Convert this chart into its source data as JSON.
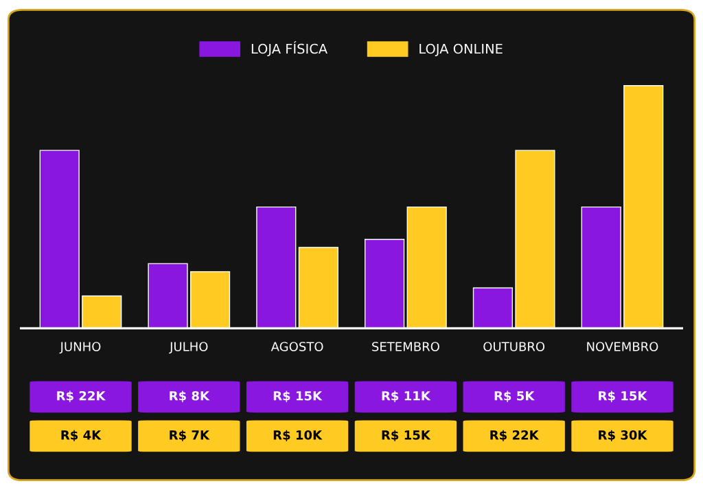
{
  "chart_data": {
    "type": "bar",
    "categories": [
      "JUNHO",
      "JULHO",
      "AGOSTO",
      "SETEMBRO",
      "OUTUBRO",
      "NOVEMBRO"
    ],
    "series": [
      {
        "name": "LOJA FÍSICA",
        "color": "#8a17e0",
        "values": [
          22000,
          8000,
          15000,
          11000,
          5000,
          15000
        ],
        "value_labels": [
          "R$ 22K",
          "R$ 8K",
          "R$ 15K",
          "R$ 11K",
          "R$ 5K",
          "R$ 15K"
        ]
      },
      {
        "name": "LOJA ONLINE",
        "color": "#ffcb22",
        "values": [
          4000,
          7000,
          10000,
          15000,
          22000,
          30000
        ],
        "value_labels": [
          "R$ 4K",
          "R$ 7K",
          "R$ 10K",
          "R$ 15K",
          "R$ 22K",
          "R$ 30K"
        ]
      }
    ],
    "legend": "top"
  }
}
